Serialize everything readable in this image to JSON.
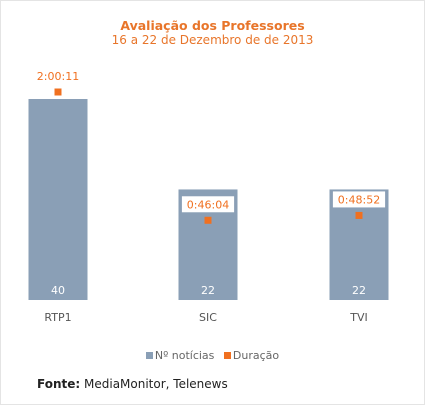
{
  "title": "Avaliação dos Professores",
  "subtitle": "16 a 22 de Dezembro de de 2013",
  "source": {
    "label": "Fonte:",
    "text": "MediaMonitor, Telenews"
  },
  "colors": {
    "bars": "#8a9fb6",
    "duration": "#f07020",
    "title": "#e8752a"
  },
  "chart_data": {
    "type": "bar",
    "title": "Avaliação dos Professores",
    "subtitle": "16 a 22 de Dezembro de de 2013",
    "categories": [
      "RTP1",
      "SIC",
      "TVI"
    ],
    "series": [
      {
        "name": "Nº notícias",
        "type": "bar",
        "values": [
          40,
          22,
          22
        ],
        "labels": [
          "40",
          "22",
          "22"
        ]
      },
      {
        "name": "Duração",
        "type": "marker",
        "values": [
          7211,
          2764,
          2932
        ],
        "labels": [
          "2:00:11",
          "0:46:04",
          "0:48:52"
        ]
      }
    ],
    "legend_position": "bottom",
    "grid": false
  }
}
